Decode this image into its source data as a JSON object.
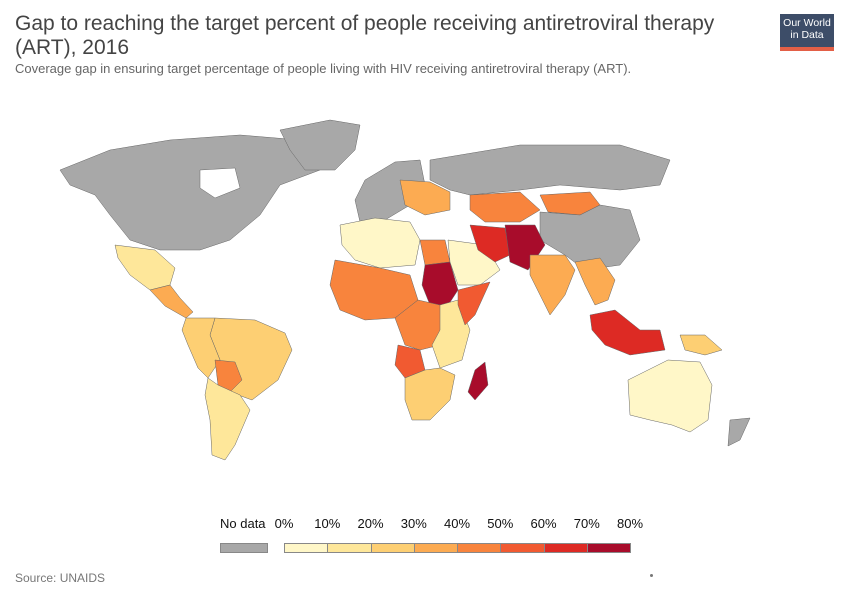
{
  "header": {
    "title": "Gap to reaching the target percent of people receiving antiretroviral therapy (ART), 2016",
    "subtitle": "Coverage gap in ensuring target percentage of people living with HIV receiving antiretroviral therapy (ART)."
  },
  "logo": {
    "line1": "Our World",
    "line2": "in Data"
  },
  "legend": {
    "no_data_label": "No data",
    "no_data_color": "#a8a8a8",
    "ticks": [
      "0%",
      "10%",
      "20%",
      "30%",
      "40%",
      "50%",
      "60%",
      "70%",
      "80%"
    ],
    "bins": [
      {
        "from": 0,
        "to": 10,
        "color": "#fff7c8"
      },
      {
        "from": 10,
        "to": 20,
        "color": "#fee79a"
      },
      {
        "from": 20,
        "to": 30,
        "color": "#fdcf73"
      },
      {
        "from": 30,
        "to": 40,
        "color": "#fcab52"
      },
      {
        "from": 40,
        "to": 50,
        "color": "#f8843d"
      },
      {
        "from": 50,
        "to": 60,
        "color": "#f15a31"
      },
      {
        "from": 60,
        "to": 70,
        "color": "#dd2a24"
      },
      {
        "from": 70,
        "to": 80,
        "color": "#a80c2b"
      }
    ]
  },
  "source": "Source: UNAIDS",
  "chart_data": {
    "type": "choropleth",
    "unit": "%",
    "regions": [
      {
        "name": "North America",
        "color": "#a8a8a8"
      },
      {
        "name": "Greenland",
        "color": "#a8a8a8"
      },
      {
        "name": "Mexico",
        "color": "#fee79a"
      },
      {
        "name": "Central America",
        "color": "#fcab52"
      },
      {
        "name": "Brazil",
        "color": "#fdcf73"
      },
      {
        "name": "South America West",
        "color": "#fdcf73"
      },
      {
        "name": "Bolivia",
        "color": "#f8843d"
      },
      {
        "name": "Argentina/Chile",
        "color": "#fee79a"
      },
      {
        "name": "Europe West",
        "color": "#a8a8a8"
      },
      {
        "name": "Eastern Europe",
        "color": "#fcab52"
      },
      {
        "name": "Russia",
        "color": "#a8a8a8"
      },
      {
        "name": "Kazakhstan",
        "color": "#f8843d"
      },
      {
        "name": "Mongolia",
        "color": "#f8843d"
      },
      {
        "name": "China",
        "color": "#a8a8a8"
      },
      {
        "name": "North Africa West",
        "color": "#fff7c8"
      },
      {
        "name": "Egypt",
        "color": "#f8843d"
      },
      {
        "name": "Sudan",
        "color": "#a80c2b"
      },
      {
        "name": "Arabia",
        "color": "#fff7c8"
      },
      {
        "name": "Iran",
        "color": "#dd2a24"
      },
      {
        "name": "Afghanistan/Pakistan",
        "color": "#a80c2b"
      },
      {
        "name": "India",
        "color": "#fcab52"
      },
      {
        "name": "Southeast Asia",
        "color": "#fcab52"
      },
      {
        "name": "West Africa",
        "color": "#f8843d"
      },
      {
        "name": "Central Africa",
        "color": "#f8843d"
      },
      {
        "name": "Angola",
        "color": "#f15a31"
      },
      {
        "name": "East Africa",
        "color": "#fee79a"
      },
      {
        "name": "Somalia",
        "color": "#f15a31"
      },
      {
        "name": "Southern Africa",
        "color": "#fdcf73"
      },
      {
        "name": "Madagascar",
        "color": "#a80c2b"
      },
      {
        "name": "Indonesia",
        "color": "#dd2a24"
      },
      {
        "name": "Papua",
        "color": "#fdcf73"
      },
      {
        "name": "Australia",
        "color": "#fff7c8"
      },
      {
        "name": "New Zealand",
        "color": "#a8a8a8"
      }
    ]
  }
}
